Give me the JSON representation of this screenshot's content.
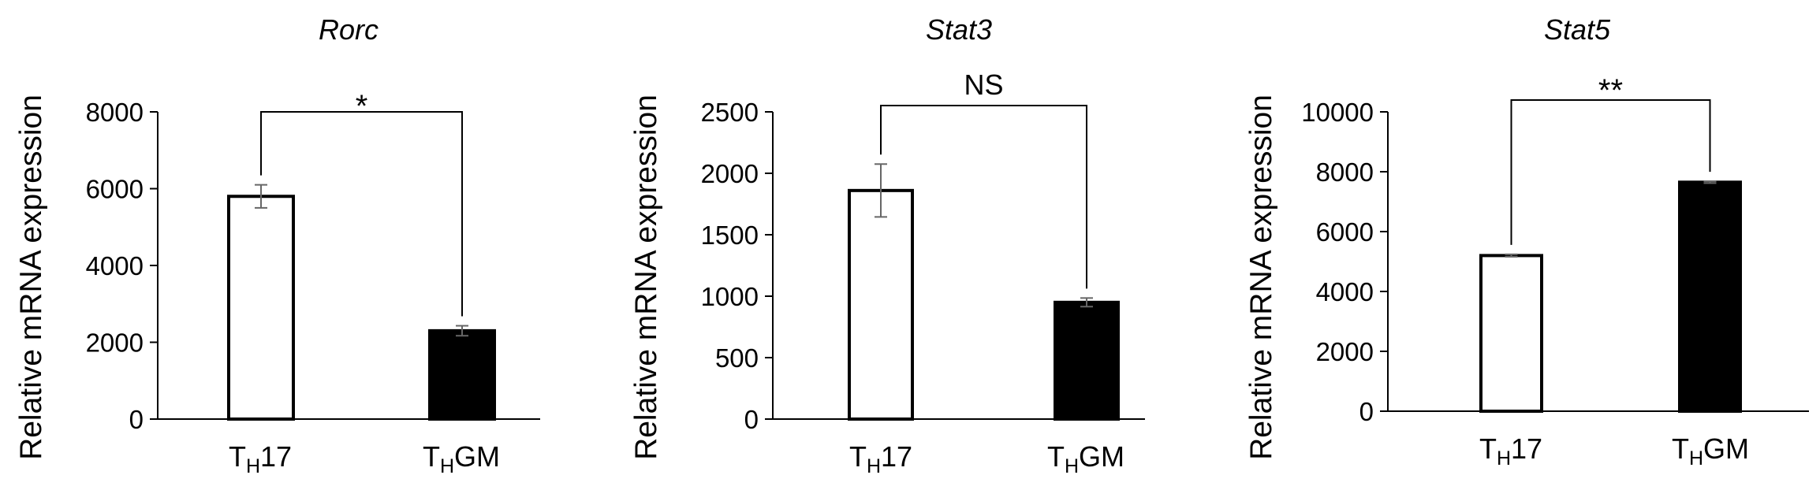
{
  "chart_data": [
    {
      "type": "bar",
      "title": "Rorc",
      "ylabel": "Relative mRNA expression",
      "ylim": [
        0,
        8000
      ],
      "yticks": [
        "0",
        "2000",
        "4000",
        "6000",
        "8000"
      ],
      "categories": [
        {
          "main": "T",
          "sub": "H",
          "rest": "17"
        },
        {
          "main": "T",
          "sub": "H",
          "rest": "GM"
        }
      ],
      "values": [
        5800,
        2300
      ],
      "errors": [
        300,
        130
      ],
      "fills": [
        "#ffffff",
        "#000000"
      ],
      "significance": "*"
    },
    {
      "type": "bar",
      "title": "Stat3",
      "ylabel": "Relative mRNA expression",
      "ylim": [
        0,
        2500
      ],
      "yticks": [
        "0",
        "500",
        "1000",
        "1500",
        "2000",
        "2500"
      ],
      "categories": [
        {
          "main": "T",
          "sub": "H",
          "rest": "17"
        },
        {
          "main": "T",
          "sub": "H",
          "rest": "GM"
        }
      ],
      "values": [
        1860,
        950
      ],
      "errors": [
        215,
        35
      ],
      "fills": [
        "#ffffff",
        "#000000"
      ],
      "significance": "NS"
    },
    {
      "type": "bar",
      "title": "Stat5",
      "ylabel": "Relative mRNA expression",
      "ylim": [
        0,
        10000
      ],
      "yticks": [
        "0",
        "2000",
        "4000",
        "6000",
        "8000",
        "10000"
      ],
      "categories": [
        {
          "main": "T",
          "sub": "H",
          "rest": "17"
        },
        {
          "main": "T",
          "sub": "H",
          "rest": "GM"
        }
      ],
      "values": [
        5200,
        7650
      ],
      "errors": [
        40,
        30
      ],
      "fills": [
        "#ffffff",
        "#000000"
      ],
      "significance": "**"
    }
  ]
}
